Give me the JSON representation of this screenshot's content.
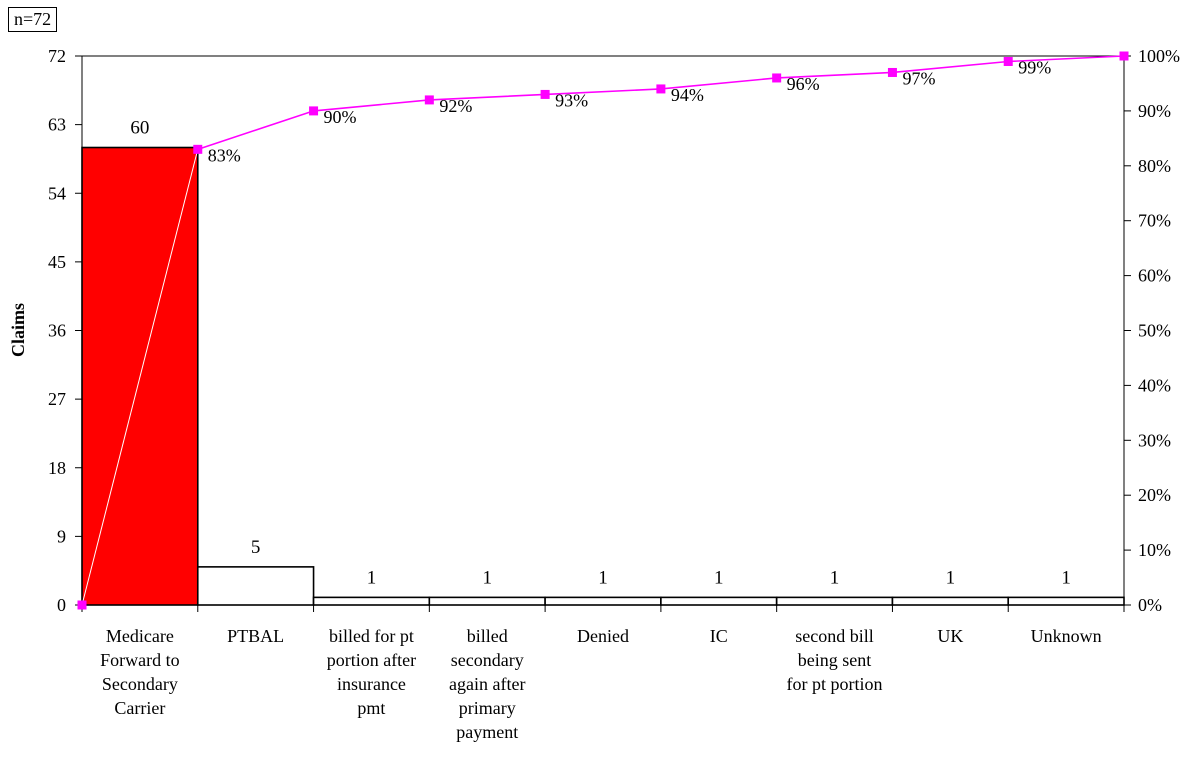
{
  "sample_label": "n=72",
  "chart_data": {
    "type": "bar",
    "subtype": "pareto",
    "ylabel": "Claims",
    "categories": [
      [
        "Medicare",
        "Forward to",
        "Secondary",
        "Carrier"
      ],
      [
        "PTBAL"
      ],
      [
        "billed for pt",
        "portion after",
        "insurance",
        "pmt"
      ],
      [
        "billed",
        "secondary",
        "again after",
        "primary",
        "payment"
      ],
      [
        "Denied"
      ],
      [
        "IC"
      ],
      [
        "second bill",
        "being sent",
        "for pt portion"
      ],
      [
        "UK"
      ],
      [
        "Unknown"
      ]
    ],
    "values": [
      60,
      5,
      1,
      1,
      1,
      1,
      1,
      1,
      1
    ],
    "value_labels": [
      "60",
      "5",
      "1",
      "1",
      "1",
      "1",
      "1",
      "1",
      "1"
    ],
    "cumulative_percent": [
      0,
      83,
      90,
      92,
      93,
      94,
      96,
      97,
      99,
      100
    ],
    "cumulative_labels": [
      "",
      "83%",
      "90%",
      "92%",
      "93%",
      "94%",
      "96%",
      "97%",
      "99%",
      ""
    ],
    "ylim": [
      0,
      72
    ],
    "y_ticks": [
      "0",
      "9",
      "18",
      "27",
      "36",
      "45",
      "54",
      "63",
      "72"
    ],
    "y2lim": [
      0,
      100
    ],
    "y2_ticks": [
      "0%",
      "10%",
      "20%",
      "30%",
      "40%",
      "50%",
      "60%",
      "70%",
      "80%",
      "90%",
      "100%"
    ],
    "grid": false,
    "colors": {
      "highlight_bar": "#ff0000",
      "bar": "#ffffff",
      "cumulative_line": "#ff00ff",
      "axis": "#000000"
    }
  }
}
